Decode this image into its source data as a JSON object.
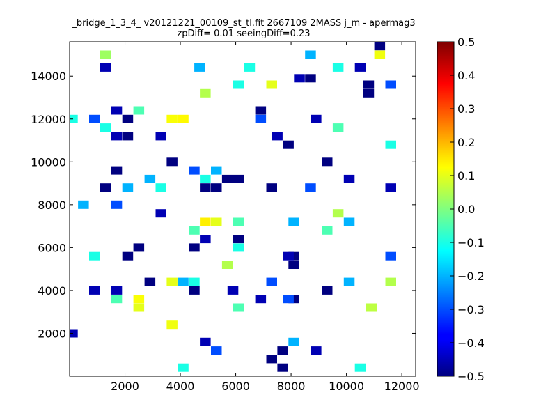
{
  "chart_data": {
    "type": "heatmap",
    "title": "_bridge_1_3_4_ v20121221_00109_st_tl.fit 2667109 2MASS j_m - apermag3",
    "subtitle": "zpDiff= 0.01 seeingDiff=0.23",
    "xlabel": "",
    "ylabel": "",
    "xlim": [
      0,
      12500
    ],
    "ylim": [
      0,
      15600
    ],
    "xticks": [
      2000,
      4000,
      6000,
      8000,
      10000,
      12000
    ],
    "yticks": [
      2000,
      4000,
      6000,
      8000,
      10000,
      12000,
      14000
    ],
    "grid": false,
    "colormap": "jet",
    "colorbar": {
      "range": [
        -0.5,
        0.5
      ],
      "ticks": [
        -0.5,
        -0.4,
        -0.3,
        -0.2,
        -0.1,
        0.0,
        0.1,
        0.2,
        0.3,
        0.4,
        0.5
      ],
      "tick_labels": [
        "−0.5",
        "−0.4",
        "−0.3",
        "−0.2",
        "−0.1",
        "0.0",
        "0.1",
        "0.2",
        "0.3",
        "0.4",
        "0.5"
      ]
    },
    "cell_size": 390,
    "cells": [
      {
        "x": 11200,
        "y": 15400,
        "v": -0.5
      },
      {
        "x": 8700,
        "y": 13900,
        "v": -0.5
      },
      {
        "x": 10800,
        "y": 13600,
        "v": -0.5
      },
      {
        "x": 10800,
        "y": 13200,
        "v": -0.5
      },
      {
        "x": 6900,
        "y": 12400,
        "v": -0.5
      },
      {
        "x": 2100,
        "y": 12000,
        "v": -0.5
      },
      {
        "x": 2100,
        "y": 11200,
        "v": -0.5
      },
      {
        "x": 7900,
        "y": 10800,
        "v": -0.5
      },
      {
        "x": 3700,
        "y": 10000,
        "v": -0.5
      },
      {
        "x": 9300,
        "y": 10000,
        "v": -0.5
      },
      {
        "x": 1700,
        "y": 9600,
        "v": -0.5
      },
      {
        "x": 5700,
        "y": 9200,
        "v": -0.5
      },
      {
        "x": 6100,
        "y": 9200,
        "v": -0.5
      },
      {
        "x": 1300,
        "y": 8800,
        "v": -0.5
      },
      {
        "x": 4900,
        "y": 8800,
        "v": -0.5
      },
      {
        "x": 5300,
        "y": 8800,
        "v": -0.5
      },
      {
        "x": 7300,
        "y": 8800,
        "v": -0.5
      },
      {
        "x": 6100,
        "y": 6400,
        "v": -0.5
      },
      {
        "x": 2500,
        "y": 6000,
        "v": -0.5
      },
      {
        "x": 4500,
        "y": 6000,
        "v": -0.5
      },
      {
        "x": 2100,
        "y": 5600,
        "v": -0.5
      },
      {
        "x": 8100,
        "y": 5600,
        "v": -0.5
      },
      {
        "x": 8100,
        "y": 5200,
        "v": -0.5
      },
      {
        "x": 2900,
        "y": 4400,
        "v": -0.5
      },
      {
        "x": 4500,
        "y": 4000,
        "v": -0.5
      },
      {
        "x": 9300,
        "y": 4000,
        "v": -0.5
      },
      {
        "x": 8100,
        "y": 3600,
        "v": -0.5
      },
      {
        "x": 7700,
        "y": 1200,
        "v": -0.5
      },
      {
        "x": 7300,
        "y": 800,
        "v": -0.5
      },
      {
        "x": 7700,
        "y": 400,
        "v": -0.5
      },
      {
        "x": 1300,
        "y": 14400,
        "v": -0.45
      },
      {
        "x": 8300,
        "y": 13900,
        "v": -0.45
      },
      {
        "x": 10500,
        "y": 14400,
        "v": -0.45
      },
      {
        "x": 1700,
        "y": 12400,
        "v": -0.45
      },
      {
        "x": 8900,
        "y": 12000,
        "v": -0.45
      },
      {
        "x": 1700,
        "y": 11200,
        "v": -0.45
      },
      {
        "x": 7500,
        "y": 11200,
        "v": -0.45
      },
      {
        "x": 3300,
        "y": 11200,
        "v": -0.45
      },
      {
        "x": 11600,
        "y": 8800,
        "v": -0.45
      },
      {
        "x": 10100,
        "y": 9200,
        "v": -0.45
      },
      {
        "x": 3300,
        "y": 7600,
        "v": -0.45
      },
      {
        "x": 4900,
        "y": 6400,
        "v": -0.45
      },
      {
        "x": 7900,
        "y": 5600,
        "v": -0.45
      },
      {
        "x": 900,
        "y": 4000,
        "v": -0.45
      },
      {
        "x": 1700,
        "y": 4000,
        "v": -0.45
      },
      {
        "x": 5900,
        "y": 4000,
        "v": -0.45
      },
      {
        "x": 6900,
        "y": 3600,
        "v": -0.45
      },
      {
        "x": 4900,
        "y": 1600,
        "v": -0.45
      },
      {
        "x": 8900,
        "y": 1200,
        "v": -0.45
      },
      {
        "x": 100,
        "y": 2000,
        "v": -0.45
      },
      {
        "x": 900,
        "y": 12000,
        "v": -0.3
      },
      {
        "x": 4500,
        "y": 9600,
        "v": -0.3
      },
      {
        "x": 7900,
        "y": 3600,
        "v": -0.3
      },
      {
        "x": 5300,
        "y": 1200,
        "v": -0.3
      },
      {
        "x": 7300,
        "y": 4400,
        "v": -0.3
      },
      {
        "x": 1700,
        "y": 8000,
        "v": -0.3
      },
      {
        "x": 11600,
        "y": 5600,
        "v": -0.3
      },
      {
        "x": 11600,
        "y": 13600,
        "v": -0.3
      },
      {
        "x": 6900,
        "y": 12000,
        "v": -0.3
      },
      {
        "x": 4700,
        "y": 14400,
        "v": -0.2
      },
      {
        "x": 8700,
        "y": 8800,
        "v": -0.3
      },
      {
        "x": 8100,
        "y": 1600,
        "v": -0.2
      },
      {
        "x": 10100,
        "y": 7200,
        "v": -0.2
      },
      {
        "x": 8100,
        "y": 7200,
        "v": -0.2
      },
      {
        "x": 500,
        "y": 8000,
        "v": -0.2
      },
      {
        "x": 2100,
        "y": 8800,
        "v": -0.2
      },
      {
        "x": 5300,
        "y": 9600,
        "v": -0.2
      },
      {
        "x": 2900,
        "y": 9200,
        "v": -0.2
      },
      {
        "x": 8700,
        "y": 15000,
        "v": -0.2
      },
      {
        "x": 4100,
        "y": 4400,
        "v": -0.2
      },
      {
        "x": 10100,
        "y": 4400,
        "v": -0.2
      },
      {
        "x": 100,
        "y": 12000,
        "v": -0.1
      },
      {
        "x": 6500,
        "y": 14400,
        "v": -0.1
      },
      {
        "x": 9700,
        "y": 14400,
        "v": -0.1
      },
      {
        "x": 6100,
        "y": 13600,
        "v": -0.1
      },
      {
        "x": 11600,
        "y": 10800,
        "v": -0.1
      },
      {
        "x": 4900,
        "y": 9200,
        "v": -0.1
      },
      {
        "x": 3300,
        "y": 8800,
        "v": -0.1
      },
      {
        "x": 6100,
        "y": 6000,
        "v": -0.1
      },
      {
        "x": 900,
        "y": 5600,
        "v": -0.1
      },
      {
        "x": 4500,
        "y": 4400,
        "v": -0.1
      },
      {
        "x": 1300,
        "y": 11600,
        "v": -0.1
      },
      {
        "x": 4100,
        "y": 400,
        "v": -0.1
      },
      {
        "x": 10500,
        "y": 400,
        "v": -0.1
      },
      {
        "x": 6100,
        "y": 7200,
        "v": -0.05
      },
      {
        "x": 9300,
        "y": 6800,
        "v": -0.05
      },
      {
        "x": 4500,
        "y": 6800,
        "v": -0.05
      },
      {
        "x": 1700,
        "y": 3600,
        "v": -0.05
      },
      {
        "x": 6100,
        "y": 3200,
        "v": -0.05
      },
      {
        "x": 2500,
        "y": 12400,
        "v": -0.05
      },
      {
        "x": 9700,
        "y": 11600,
        "v": -0.05
      },
      {
        "x": 3700,
        "y": 12000,
        "v": 0.12
      },
      {
        "x": 4100,
        "y": 12000,
        "v": 0.13
      },
      {
        "x": 4900,
        "y": 7200,
        "v": 0.14
      },
      {
        "x": 5300,
        "y": 7200,
        "v": 0.1
      },
      {
        "x": 2500,
        "y": 3600,
        "v": 0.12
      },
      {
        "x": 2500,
        "y": 3200,
        "v": 0.1
      },
      {
        "x": 3700,
        "y": 2400,
        "v": 0.11
      },
      {
        "x": 3700,
        "y": 4400,
        "v": 0.1
      },
      {
        "x": 11200,
        "y": 15000,
        "v": 0.11
      },
      {
        "x": 7300,
        "y": 13600,
        "v": 0.1
      },
      {
        "x": 4900,
        "y": 13200,
        "v": 0.05
      },
      {
        "x": 11600,
        "y": 4400,
        "v": 0.05
      },
      {
        "x": 10900,
        "y": 3200,
        "v": 0.06
      },
      {
        "x": 5700,
        "y": 5200,
        "v": 0.05
      },
      {
        "x": 9700,
        "y": 7600,
        "v": 0.05
      },
      {
        "x": 1300,
        "y": 15000,
        "v": 0.03
      }
    ]
  }
}
